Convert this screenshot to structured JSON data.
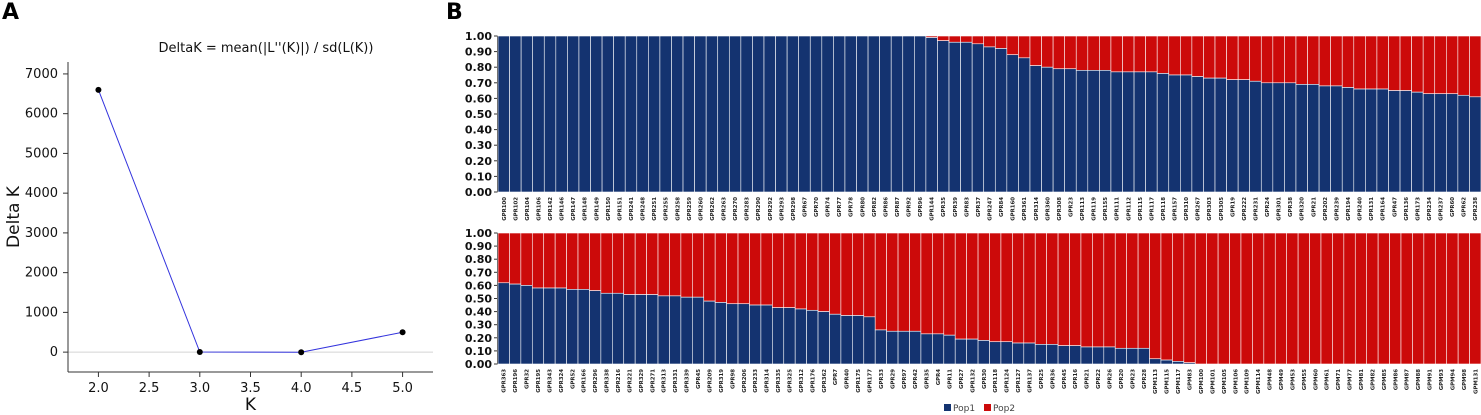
{
  "panels": {
    "a": "A",
    "b": "B"
  },
  "colors": {
    "line": "#3333dd",
    "pop1": "#143370",
    "pop2": "#cc0a0a"
  },
  "chart_data": [
    {
      "type": "line",
      "title": "DeltaK = mean(|L''(K)|) / sd(L(K))",
      "xlabel": "K",
      "ylabel": "Delta K",
      "x": [
        2.0,
        3.0,
        4.0,
        5.0
      ],
      "y": [
        6600,
        2,
        -2,
        500
      ],
      "xlim": [
        1.7,
        5.3
      ],
      "ylim": [
        -500,
        7300
      ],
      "xticks": [
        "2.0",
        "2.5",
        "3.0",
        "3.5",
        "4.0",
        "4.5",
        "5.0"
      ],
      "yticks": [
        "0",
        "1000",
        "2000",
        "3000",
        "4000",
        "5000",
        "6000",
        "7000"
      ],
      "grid": false
    },
    {
      "type": "bar",
      "stacked": true,
      "yticks": [
        "0.00",
        "0.10",
        "0.20",
        "0.30",
        "0.40",
        "0.50",
        "0.60",
        "0.70",
        "0.80",
        "0.90",
        "1.00"
      ],
      "series_names": [
        "Pop1",
        "Pop2"
      ],
      "legend": "bottom-center",
      "rows": [
        {
          "categories": [
            "GPR100",
            "GPR102",
            "GPR104",
            "GPR106",
            "GPR142",
            "GPR146",
            "GPR147",
            "GPR148",
            "GPR149",
            "GPR150",
            "GPR151",
            "GPR241",
            "GPR248",
            "GPR251",
            "GPR255",
            "GPR258",
            "GPR259",
            "GPR260",
            "GPR262",
            "GPR263",
            "GPR270",
            "GPR283",
            "GPR290",
            "GPR292",
            "GPR293",
            "GPR298",
            "GPR67",
            "GPR70",
            "GPR74",
            "GPR77",
            "GPR78",
            "GPR80",
            "GPR82",
            "GPR86",
            "GPR87",
            "GPR92",
            "GPR96",
            "GPR144",
            "GPR35",
            "GPR39",
            "GPR83",
            "GPR37",
            "GPR247",
            "GPR84",
            "GPR160",
            "GPR361",
            "GPR314",
            "GPR360",
            "GPR308",
            "GPR23",
            "GPR113",
            "GPR119",
            "GPR155",
            "GPR111",
            "GPR112",
            "GPR115",
            "GPR117",
            "GPR118",
            "GPR157",
            "GPR310",
            "GPR267",
            "GPR303",
            "GPR305",
            "GPR19",
            "GPR222",
            "GPR231",
            "GPR24",
            "GPR301",
            "GPR38",
            "GPR320",
            "GPR21",
            "GPR202",
            "GPR239",
            "GPR194",
            "GPR240",
            "GPR131",
            "GPR164",
            "GPR47",
            "GPR136",
            "GPR173",
            "GPR234",
            "GPR237",
            "GPR60",
            "GPR62",
            "GPR238"
          ],
          "pop1": [
            1,
            1,
            1,
            1,
            1,
            1,
            1,
            1,
            1,
            1,
            1,
            1,
            1,
            1,
            1,
            1,
            1,
            1,
            1,
            1,
            1,
            1,
            1,
            1,
            1,
            1,
            1,
            1,
            1,
            1,
            1,
            1,
            1,
            1,
            1,
            1,
            1,
            0.99,
            0.97,
            0.96,
            0.96,
            0.95,
            0.93,
            0.92,
            0.88,
            0.86,
            0.81,
            0.8,
            0.79,
            0.79,
            0.78,
            0.78,
            0.78,
            0.77,
            0.77,
            0.77,
            0.77,
            0.76,
            0.75,
            0.75,
            0.74,
            0.73,
            0.73,
            0.72,
            0.72,
            0.71,
            0.7,
            0.7,
            0.7,
            0.69,
            0.69,
            0.68,
            0.68,
            0.67,
            0.66,
            0.66,
            0.66,
            0.65,
            0.65,
            0.64,
            0.63,
            0.63,
            0.63,
            0.62,
            0.61
          ]
        },
        {
          "categories": [
            "GPR363",
            "GPR196",
            "GPR32",
            "GPR195",
            "GPR343",
            "GPR324",
            "GPR52",
            "GPR166",
            "GPR296",
            "GPR338",
            "GPR216",
            "GPR221",
            "GPR329",
            "GPR271",
            "GPR313",
            "GPR331",
            "GPR339",
            "GPR45",
            "GPR209",
            "GPR319",
            "GPR98",
            "GPR206",
            "GPR233",
            "GPR314",
            "GPR335",
            "GPR325",
            "GPR312",
            "GPR176",
            "GPR362",
            "GPR7",
            "GPR40",
            "GPR175",
            "GPR177",
            "GPR33",
            "GPR29",
            "GPR97",
            "GPR42",
            "GPR35",
            "GPR4",
            "GPR11",
            "GPR27",
            "GPR132",
            "GPR30",
            "GPR118",
            "GPR124",
            "GPR127",
            "GPR137",
            "GPR25",
            "GPR36",
            "GPR45",
            "GPR16",
            "GPR21",
            "GPR22",
            "GPR26",
            "GPR20",
            "GPR23",
            "GPR28",
            "GPM113",
            "GPM115",
            "GPM117",
            "GPM83",
            "GPM100",
            "GPM101",
            "GPM105",
            "GPM106",
            "GPM109",
            "GPM114",
            "GPM48",
            "GPM49",
            "GPM53",
            "GPM55",
            "GPM60",
            "GPM61",
            "GPM71",
            "GPM77",
            "GPM81",
            "GPM82",
            "GPM85",
            "GPM86",
            "GPM87",
            "GPM88",
            "GPM91",
            "GPM93",
            "GPM94",
            "GPM98",
            "GPM131"
          ],
          "pop1": [
            0.62,
            0.61,
            0.6,
            0.58,
            0.58,
            0.58,
            0.57,
            0.57,
            0.56,
            0.54,
            0.54,
            0.53,
            0.53,
            0.53,
            0.52,
            0.52,
            0.51,
            0.51,
            0.48,
            0.47,
            0.46,
            0.46,
            0.45,
            0.45,
            0.43,
            0.43,
            0.42,
            0.41,
            0.4,
            0.38,
            0.37,
            0.37,
            0.36,
            0.26,
            0.25,
            0.25,
            0.25,
            0.23,
            0.23,
            0.22,
            0.19,
            0.19,
            0.18,
            0.17,
            0.17,
            0.16,
            0.16,
            0.15,
            0.15,
            0.14,
            0.14,
            0.13,
            0.13,
            0.13,
            0.12,
            0.12,
            0.12,
            0.04,
            0.03,
            0.02,
            0.01,
            0,
            0,
            0,
            0,
            0,
            0,
            0,
            0,
            0,
            0,
            0,
            0,
            0,
            0,
            0,
            0,
            0,
            0,
            0,
            0,
            0,
            0,
            0,
            0,
            0
          ]
        }
      ]
    }
  ]
}
